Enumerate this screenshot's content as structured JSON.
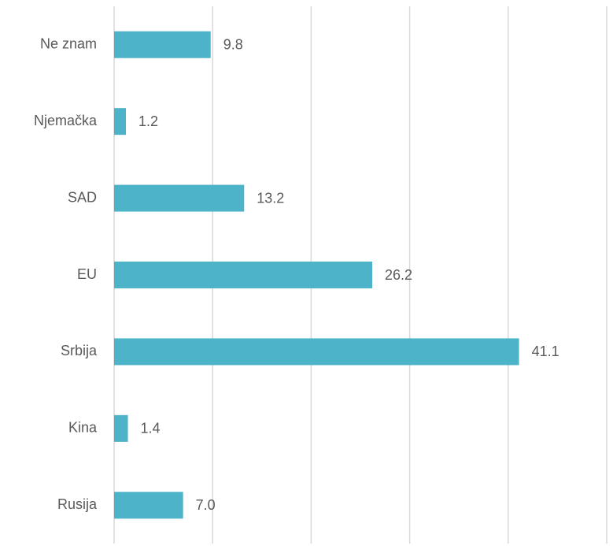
{
  "chart_data": {
    "type": "barh",
    "categories": [
      "Ne znam",
      "Njemačka",
      "SAD",
      "EU",
      "Srbija",
      "Kina",
      "Rusija"
    ],
    "values": [
      9.8,
      1.2,
      13.2,
      26.2,
      41.1,
      1.4,
      7.0
    ],
    "value_labels": [
      "9.8",
      "1.2",
      "13.2",
      "26.2",
      "41.1",
      "1.4",
      "7.0"
    ],
    "color": "#4db3c8",
    "xlim": [
      0,
      50
    ],
    "xticks": [
      0,
      10,
      20,
      30,
      40,
      50
    ],
    "grid": true
  }
}
